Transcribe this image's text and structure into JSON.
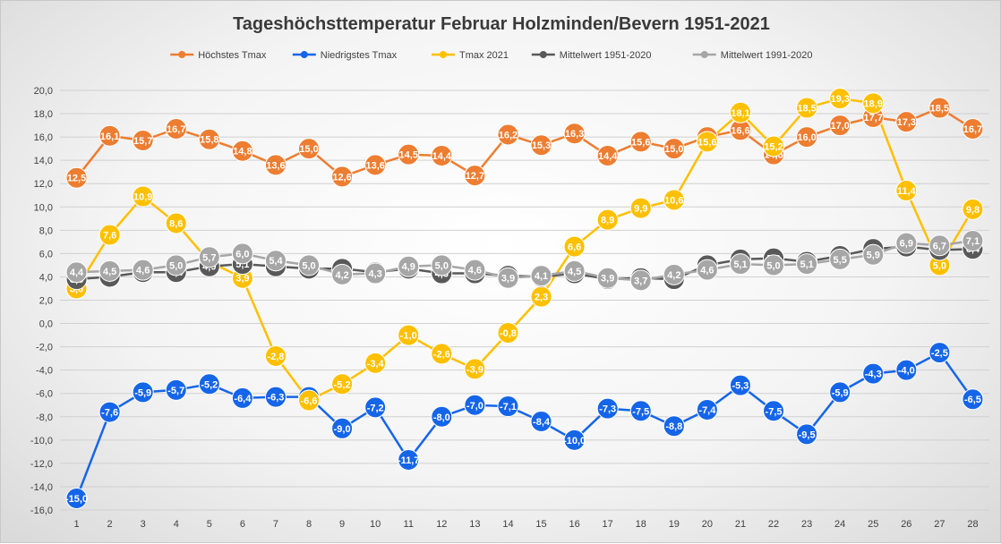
{
  "chart_data": {
    "type": "line",
    "title": "Tageshöchsttemperatur Februar Holzminden/Bevern 1951-2021",
    "xlabel": "",
    "ylabel": "",
    "ylim": [
      -16,
      20
    ],
    "ystep": 2,
    "grid": true,
    "legend_position": "top",
    "categories": [
      "1",
      "2",
      "3",
      "4",
      "5",
      "6",
      "7",
      "8",
      "9",
      "10",
      "11",
      "12",
      "13",
      "14",
      "15",
      "16",
      "17",
      "18",
      "19",
      "20",
      "21",
      "22",
      "23",
      "24",
      "25",
      "26",
      "27",
      "28"
    ],
    "y_tick_labels": [
      "-16,0",
      "-14,0",
      "-12,0",
      "-10,0",
      "-8,0",
      "-6,0",
      "-4,0",
      "-2,0",
      "0,0",
      "2,0",
      "4,0",
      "6,0",
      "8,0",
      "10,0",
      "12,0",
      "14,0",
      "16,0",
      "18,0",
      "20,0"
    ],
    "series": [
      {
        "name": "Höchstes Tmax",
        "color": "#ED7D31",
        "values": [
          12.5,
          16.1,
          15.7,
          16.7,
          15.8,
          14.8,
          13.6,
          15.0,
          12.6,
          13.6,
          14.5,
          14.4,
          12.7,
          16.2,
          15.3,
          16.3,
          14.4,
          15.6,
          15.0,
          16.0,
          16.6,
          14.5,
          16.0,
          17.0,
          17.7,
          17.3,
          18.5,
          16.7
        ],
        "labels": [
          "12,5",
          "16,1",
          "15,7",
          "16,7",
          "15,8",
          "14,8",
          "13,6",
          "15,0",
          "12,6",
          "13,6",
          "14,5",
          "14,4",
          "12,7",
          "16,2",
          "15,3",
          "16,3",
          "14,4",
          "15,6",
          "15,0",
          "16,0",
          "16,6",
          "14,5",
          "16,0",
          "17,0",
          "17,7",
          "17,3",
          "18,5",
          "16,7"
        ]
      },
      {
        "name": "Niedrigstes Tmax",
        "color": "#1565E8",
        "values": [
          -15.0,
          -7.6,
          -5.9,
          -5.7,
          -5.2,
          -6.4,
          -6.3,
          -6.3,
          -9.0,
          -7.2,
          -11.7,
          -8.0,
          -7.0,
          -7.1,
          -8.4,
          -10.0,
          -7.3,
          -7.5,
          -8.8,
          -7.4,
          -5.3,
          -7.5,
          -9.5,
          -5.9,
          -4.3,
          -4.0,
          -2.5,
          -6.5
        ],
        "labels": [
          "-15,0",
          "-7,6",
          "-5,9",
          "-5,7",
          "-5,2",
          "-6,4",
          "-6,3",
          "-6,3",
          "-9,0",
          "-7,2",
          "-11,7",
          "-8,0",
          "-7,0",
          "-7,1",
          "-8,4",
          "-10,0",
          "-7,3",
          "-7,5",
          "-8,8",
          "-7,4",
          "-5,3",
          "-7,5",
          "-9,5",
          "-5,9",
          "-4,3",
          "-4,0",
          "-2,5",
          "-6,5"
        ]
      },
      {
        "name": "Tmax 2021",
        "color": "#FFC000",
        "values": [
          3.0,
          7.6,
          10.9,
          8.6,
          5.3,
          3.9,
          -2.8,
          -6.6,
          -5.2,
          -3.4,
          -1.0,
          -2.6,
          -3.9,
          -0.8,
          2.3,
          6.6,
          8.9,
          9.9,
          10.6,
          15.6,
          18.1,
          15.2,
          18.5,
          19.3,
          18.9,
          11.4,
          5.0,
          9.8
        ],
        "labels": [
          "3,0",
          "7,6",
          "10,9",
          "8,6",
          "5,3",
          "3,9",
          "-2,8",
          "-6,6",
          "-5,2",
          "-3,4",
          "-1,0",
          "-2,6",
          "-3,9",
          "-0,8",
          "2,3",
          "6,6",
          "8,9",
          "9,9",
          "10,6",
          "15,6",
          "18,1",
          "15,2",
          "18,5",
          "19,3",
          "18,9",
          "11,4",
          "5,0",
          "9,8"
        ]
      },
      {
        "name": "Mittelwert 1951-2020",
        "color": "#595959",
        "values": [
          3.8,
          4.0,
          4.4,
          4.4,
          4.9,
          5.1,
          4.9,
          4.7,
          4.7,
          4.4,
          4.7,
          4.3,
          4.3,
          4.1,
          4.0,
          4.3,
          3.8,
          3.9,
          3.8,
          5.0,
          5.5,
          5.6,
          5.3,
          5.8,
          6.4,
          6.6,
          6.3,
          6.4
        ],
        "labels": [
          "3,8",
          "4,0",
          "4,4",
          "4,4",
          "4,9",
          "5,1",
          "4,9",
          "4,7",
          "4,7",
          "4,4",
          "4,7",
          "4,3",
          "4,3",
          "4,1",
          "4,0",
          "4,3",
          "3,8",
          "3,9",
          "3,8",
          "5,0",
          "5,5",
          "5,6",
          "5,3",
          "5,8",
          "6,4",
          "6,6",
          "6,3",
          "6,4"
        ]
      },
      {
        "name": "Mittelwert 1991-2020",
        "color": "#A6A6A6",
        "values": [
          4.4,
          4.5,
          4.6,
          5.0,
          5.7,
          6.0,
          5.4,
          5.0,
          4.2,
          4.3,
          4.9,
          5.0,
          4.6,
          3.9,
          4.1,
          4.5,
          3.9,
          3.7,
          4.2,
          4.6,
          5.1,
          5.0,
          5.1,
          5.5,
          5.9,
          6.9,
          6.7,
          7.1
        ],
        "labels": [
          "4,4",
          "4,5",
          "4,6",
          "5,0",
          "5,7",
          "6,0",
          "5,4",
          "5,0",
          "4,2",
          "4,3",
          "4,9",
          "5,0",
          "4,6",
          "3,9",
          "4,1",
          "4,5",
          "3,9",
          "3,7",
          "4,2",
          "4,6",
          "5,1",
          "5,0",
          "5,1",
          "5,5",
          "5,9",
          "6,9",
          "6,7",
          "7,1"
        ]
      }
    ]
  }
}
